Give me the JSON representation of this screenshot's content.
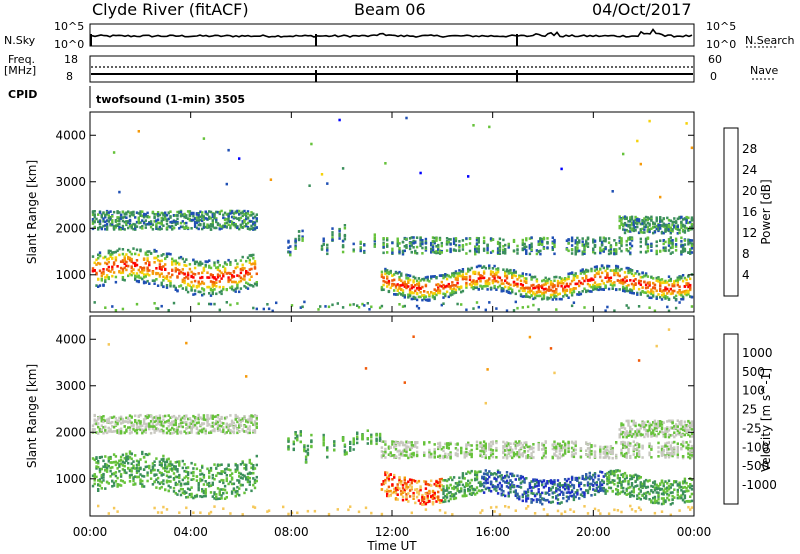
{
  "header": {
    "station": "Clyde River (fitACF)",
    "beam": "Beam 06",
    "date": "04/Oct/2017"
  },
  "top_panels": {
    "nsky_label": "N.Sky",
    "nsky_ticks": [
      "10^5",
      "10^0"
    ],
    "nsearch_label": "N.Search",
    "nsearch_ticks": [
      "10^5",
      "10^0"
    ],
    "freq_label_line1": "Freq.",
    "freq_label_line2": "[MHz]",
    "freq_ticks": [
      "18",
      "8"
    ],
    "nave_label": "Nave",
    "nave_ticks": [
      "60",
      "0"
    ],
    "cpid_label": "CPID",
    "cpid_text": "twofsound (1-min) 3505"
  },
  "chart_data": [
    {
      "type": "heatmap",
      "name": "power",
      "ylabel": "Slant Range [km]",
      "ylim": [
        200,
        4500
      ],
      "yticks": [
        "4000",
        "3000",
        "2000",
        "1000"
      ],
      "xlim": [
        "00:00",
        "24:00"
      ],
      "colorbar_label": "Power [dB]",
      "colorbar_ticks": [
        "28",
        "24",
        "20",
        "16",
        "12",
        "8",
        "4"
      ],
      "colors": [
        "#0000ff",
        "#1f4fb4",
        "#3b8f5b",
        "#66c23a",
        "#f5d20a",
        "#f59a0a",
        "#f05a0a",
        "#ff0000"
      ]
    },
    {
      "type": "heatmap",
      "name": "velocity",
      "ylabel": "Slant Range [km]",
      "ylim": [
        200,
        4500
      ],
      "yticks": [
        "4000",
        "3000",
        "2000",
        "1000"
      ],
      "xlim": [
        "00:00",
        "24:00"
      ],
      "colorbar_label": "Velocity [m s^-1]",
      "colorbar_ticks": [
        "1000",
        "500",
        "100",
        "25",
        "-25",
        "-100",
        "-500",
        "-1000"
      ],
      "colors": [
        "#1f2fc8",
        "#2f5fa8",
        "#3b8f5b",
        "#66c23a",
        "#c8c8c0",
        "#f5c85a",
        "#f59a0a",
        "#f05a0a",
        "#ff0000"
      ]
    }
  ],
  "x_axis": {
    "ticks": [
      "00:00",
      "04:00",
      "08:00",
      "12:00",
      "16:00",
      "20:00",
      "00:00"
    ],
    "label": "Time UT"
  }
}
